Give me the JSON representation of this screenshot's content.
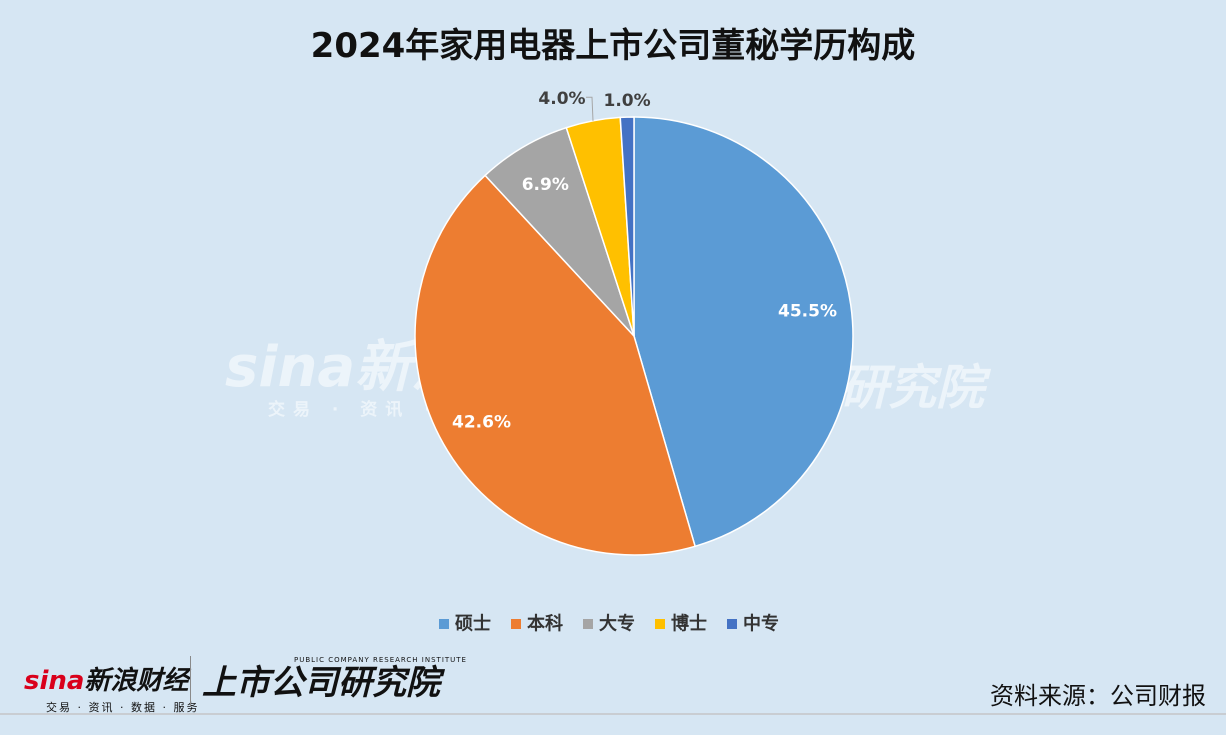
{
  "chart_data": {
    "type": "pie",
    "title": "2024年家用电器上市公司董秘学历构成",
    "series": [
      {
        "name": "硕士",
        "value": 45.5,
        "label": "45.5%",
        "color": "#5b9bd5"
      },
      {
        "name": "本科",
        "value": 42.6,
        "label": "42.6%",
        "color": "#ed7d31"
      },
      {
        "name": "大专",
        "value": 6.9,
        "label": "6.9%",
        "color": "#a5a5a5"
      },
      {
        "name": "博士",
        "value": 4.0,
        "label": "4.0%",
        "color": "#ffc000"
      },
      {
        "name": "中专",
        "value": 1.0,
        "label": "1.0%",
        "color": "#4472c4"
      }
    ],
    "legend_position": "bottom"
  },
  "watermark": {
    "left_main": "sina新浪",
    "left_sub": "交易 · 资讯 ·",
    "right_main": "研究院"
  },
  "footer": {
    "sina_logo_red": "sina",
    "sina_logo_text": "新浪财经",
    "sina_logo_sub": "交易 · 资讯 · 数据 · 服务",
    "institute_en": "PUBLIC COMPANY RESEARCH INSTITUTE",
    "institute_cn": "上市公司研究院",
    "source": "资料来源：公司财报"
  }
}
